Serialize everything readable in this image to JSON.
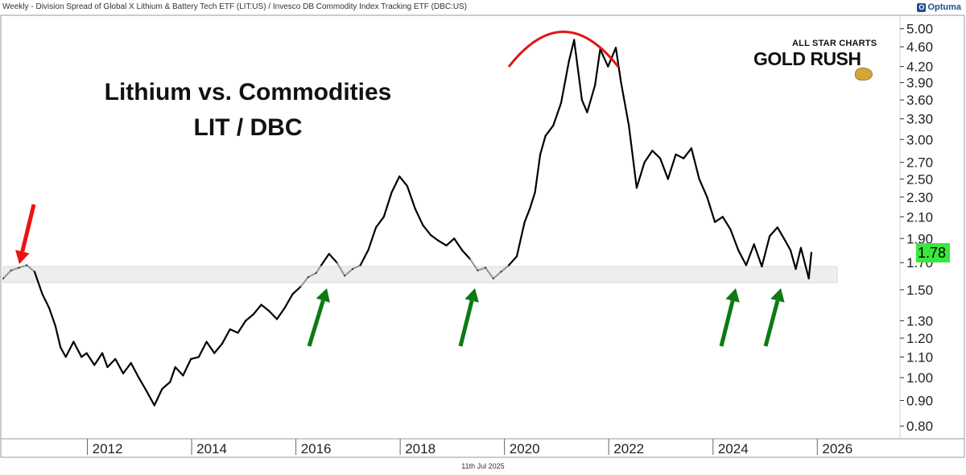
{
  "header": {
    "title": "Weekly - Division Spread of Global X Lithium & Battery Tech ETF (LIT:US) / Invesco DB Commodity Index Tracking ETF (DBC:US)",
    "brand": "Optuma",
    "brand_icon": "optuma-logo-icon"
  },
  "overlay": {
    "title_line1": "Lithium vs. Commodities",
    "title_line2": "LIT / DBC"
  },
  "logo": {
    "top": "ALL STAR CHARTS",
    "main": "GOLD RUSH",
    "icon": "gold-nugget-icon"
  },
  "footer": {
    "date": "11th Jul 2025"
  },
  "price_badge": {
    "value": "1.78",
    "color": "#39e83d"
  },
  "colors": {
    "line": "#000000",
    "line_in_zone": "#999999",
    "support_zone": "#eeeeee",
    "up_arrow": "#0d7a13",
    "down_arrow": "#ee1111",
    "top_arc": "#e01616"
  },
  "chart_data": {
    "type": "line",
    "title": "",
    "xlabel": "",
    "ylabel": "",
    "y_scale": "log",
    "ylim": [
      0.76,
      5.3
    ],
    "xlim": [
      2010.0,
      2027.2
    ],
    "x_ticks": [
      "2012",
      "2014",
      "2016",
      "2018",
      "2020",
      "2022",
      "2024",
      "2026"
    ],
    "y_ticks": [
      "5.00",
      "4.60",
      "4.20",
      "3.90",
      "3.60",
      "3.30",
      "3.00",
      "2.70",
      "2.50",
      "2.30",
      "2.10",
      "1.90",
      "1.70",
      "1.50",
      "1.30",
      "1.20",
      "1.10",
      "1.00",
      "0.90",
      "0.80"
    ],
    "grid": false,
    "last_value": 1.78,
    "support_zone": [
      1.55,
      1.67
    ],
    "series": [
      {
        "x": [
          2010.0,
          2010.15,
          2010.3,
          2010.45,
          2010.6,
          2010.75,
          2010.88,
          2011.0,
          2011.1,
          2011.2,
          2011.35,
          2011.5,
          2011.6,
          2011.75,
          2011.9,
          2012.0,
          2012.15,
          2012.3,
          2012.45,
          2012.6,
          2012.75,
          2012.9,
          2013.05,
          2013.2,
          2013.3,
          2013.45,
          2013.6,
          2013.75,
          2013.9,
          2014.05,
          2014.2,
          2014.35,
          2014.5,
          2014.65,
          2014.8,
          2014.95,
          2015.1,
          2015.25,
          2015.4,
          2015.55,
          2015.7,
          2015.85,
          2016.0,
          2016.1,
          2016.25,
          2016.4,
          2016.55,
          2016.7,
          2016.85,
          2017.0,
          2017.15,
          2017.3,
          2017.45,
          2017.6,
          2017.75,
          2017.9,
          2018.05,
          2018.2,
          2018.35,
          2018.5,
          2018.65,
          2018.8,
          2018.95,
          2019.1,
          2019.25,
          2019.4,
          2019.55,
          2019.7,
          2019.85,
          2020.0,
          2020.1,
          2020.2,
          2020.3,
          2020.4,
          2020.55,
          2020.7,
          2020.85,
          2020.95,
          2021.1,
          2021.2,
          2021.35,
          2021.45,
          2021.6,
          2021.75,
          2021.85,
          2022.0,
          2022.15,
          2022.3,
          2022.45,
          2022.6,
          2022.75,
          2022.9,
          2023.05,
          2023.2,
          2023.35,
          2023.5,
          2023.65,
          2023.8,
          2023.95,
          2024.1,
          2024.25,
          2024.4,
          2024.55,
          2024.7,
          2024.85,
          2025.0,
          2025.1,
          2025.2,
          2025.3,
          2025.45,
          2025.5
        ],
        "values": [
          1.58,
          1.64,
          1.66,
          1.68,
          1.63,
          1.47,
          1.38,
          1.27,
          1.15,
          1.1,
          1.18,
          1.1,
          1.12,
          1.06,
          1.12,
          1.05,
          1.09,
          1.02,
          1.07,
          1.0,
          0.94,
          0.88,
          0.95,
          0.98,
          1.05,
          1.01,
          1.09,
          1.1,
          1.18,
          1.12,
          1.17,
          1.25,
          1.23,
          1.3,
          1.34,
          1.4,
          1.36,
          1.31,
          1.38,
          1.47,
          1.52,
          1.59,
          1.62,
          1.68,
          1.77,
          1.7,
          1.6,
          1.65,
          1.68,
          1.8,
          2.0,
          2.1,
          2.35,
          2.53,
          2.42,
          2.18,
          2.02,
          1.93,
          1.88,
          1.84,
          1.9,
          1.8,
          1.73,
          1.64,
          1.66,
          1.58,
          1.63,
          1.68,
          1.75,
          2.05,
          2.18,
          2.35,
          2.8,
          3.05,
          3.2,
          3.55,
          4.3,
          4.75,
          3.6,
          3.4,
          3.85,
          4.55,
          4.2,
          4.58,
          3.9,
          3.2,
          2.4,
          2.7,
          2.85,
          2.75,
          2.5,
          2.8,
          2.75,
          2.88,
          2.5,
          2.3,
          2.05,
          2.1,
          1.98,
          1.8,
          1.68,
          1.85,
          1.67,
          1.92,
          2.0,
          1.88,
          1.8,
          1.65,
          1.82,
          1.58,
          1.78
        ]
      }
    ]
  }
}
